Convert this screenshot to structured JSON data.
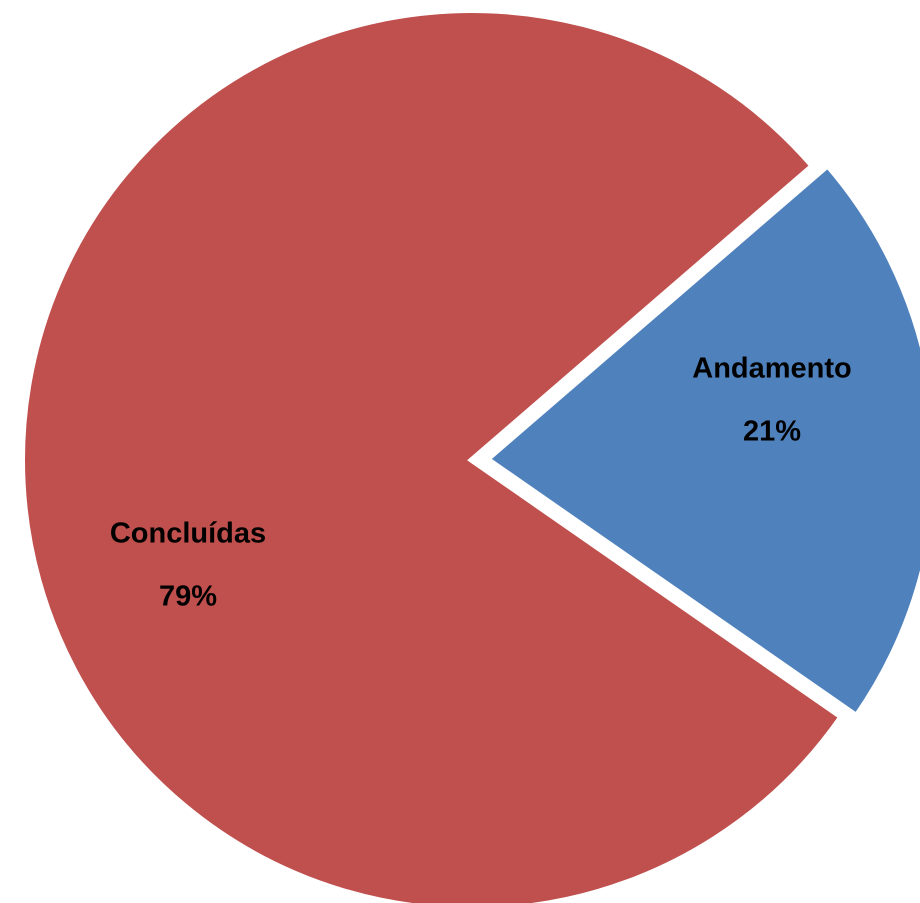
{
  "chart_data": {
    "type": "pie",
    "categories": [
      "Andamento",
      "Concluídas"
    ],
    "values": [
      21,
      79
    ],
    "value_labels": [
      "21%",
      "79%"
    ],
    "colors": [
      "#4f81bd",
      "#c0504d"
    ]
  }
}
